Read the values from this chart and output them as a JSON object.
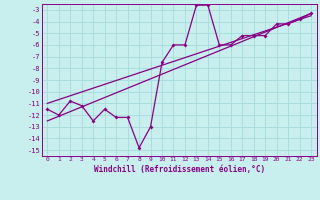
{
  "x": [
    0,
    1,
    2,
    3,
    4,
    5,
    6,
    7,
    8,
    9,
    10,
    11,
    12,
    13,
    14,
    15,
    16,
    17,
    18,
    19,
    20,
    21,
    22,
    23
  ],
  "y": [
    -11.5,
    -12.0,
    -10.8,
    -11.2,
    -12.5,
    -11.5,
    -12.2,
    -12.2,
    -14.8,
    -13.0,
    -7.5,
    -6.0,
    -6.0,
    -2.6,
    -2.6,
    -6.0,
    -6.0,
    -5.2,
    -5.2,
    -5.2,
    -4.2,
    -4.2,
    -3.8,
    -3.3
  ],
  "trend_x": [
    0,
    23
  ],
  "trend_y": [
    -12.5,
    -3.3
  ],
  "trend2_x": [
    0,
    23
  ],
  "trend2_y": [
    -11.0,
    -3.5
  ],
  "color": "#880088",
  "bg_color": "#c8eeee",
  "grid_color": "#aadddd",
  "xlabel": "Windchill (Refroidissement éolien,°C)",
  "ylim": [
    -15.5,
    -2.5
  ],
  "xlim": [
    -0.5,
    23.5
  ],
  "yticks": [
    -3,
    -4,
    -5,
    -6,
    -7,
    -8,
    -9,
    -10,
    -11,
    -12,
    -13,
    -14,
    -15
  ],
  "xticks": [
    0,
    1,
    2,
    3,
    4,
    5,
    6,
    7,
    8,
    9,
    10,
    11,
    12,
    13,
    14,
    15,
    16,
    17,
    18,
    19,
    20,
    21,
    22,
    23
  ],
  "marker": "D",
  "markersize": 2,
  "linewidth": 0.9
}
